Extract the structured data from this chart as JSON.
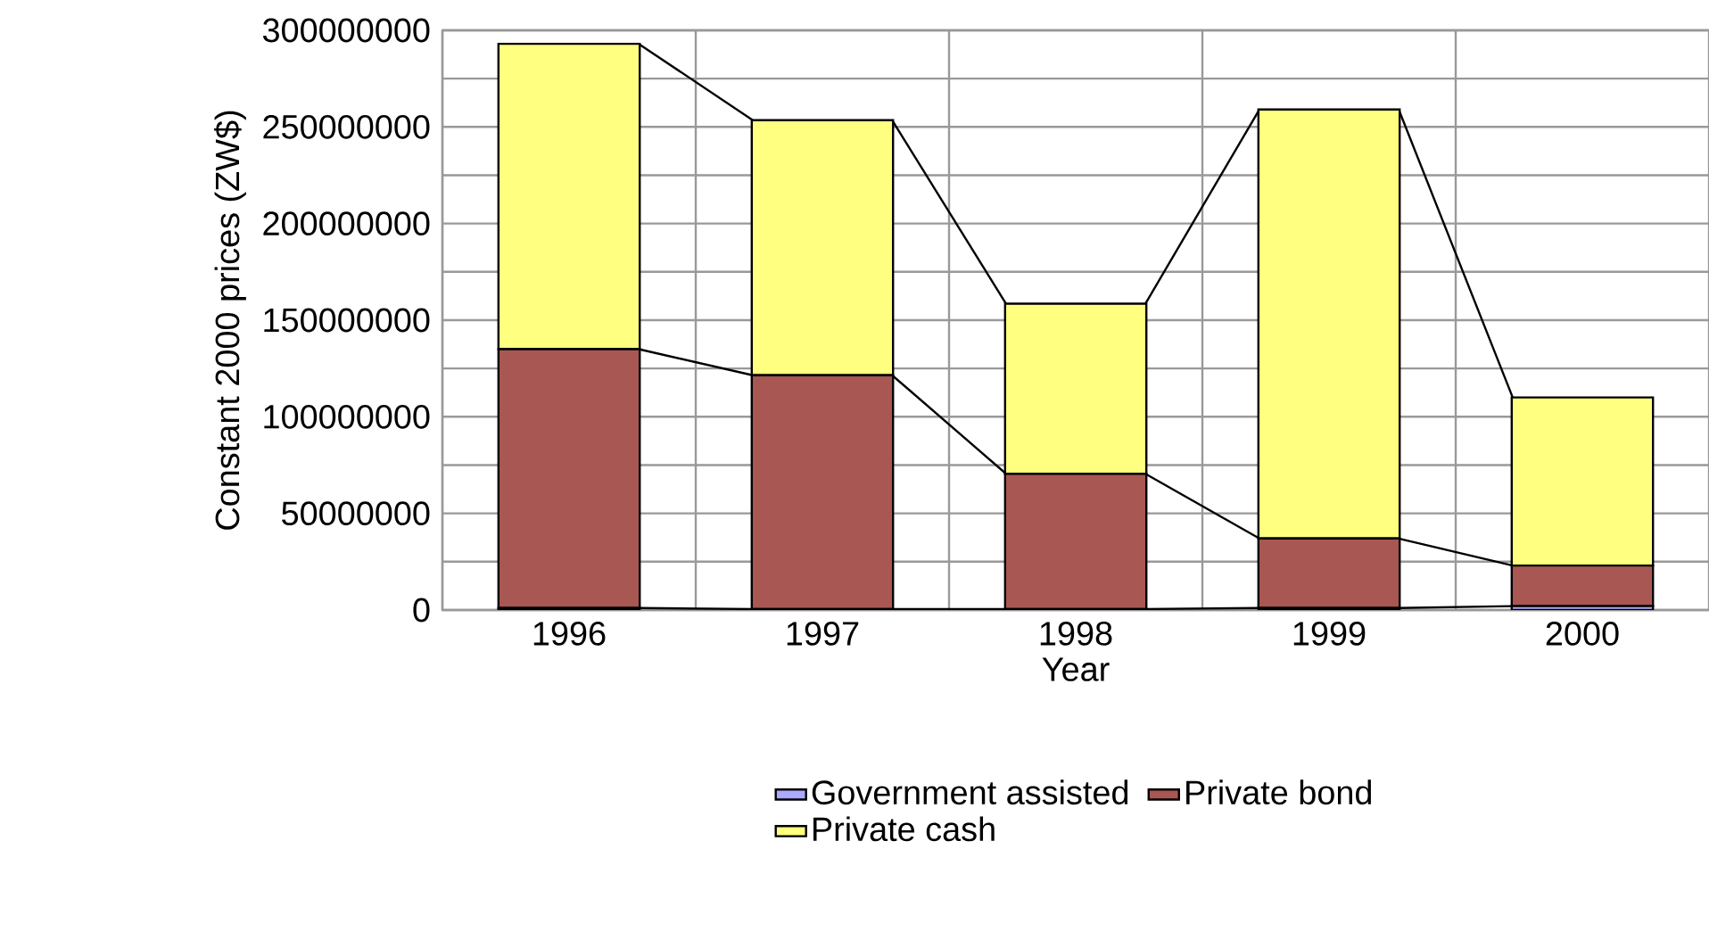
{
  "chart_data": {
    "type": "bar",
    "stacked": true,
    "xlabel": "Year",
    "ylabel": "Constant 2000 prices (ZW$)",
    "categories": [
      "1996",
      "1997",
      "1998",
      "1999",
      "2000"
    ],
    "series": [
      {
        "name": "Government assisted",
        "color": "#aaaaff",
        "values": [
          1000000,
          500000,
          500000,
          1000000,
          2000000
        ]
      },
      {
        "name": "Private bond",
        "color": "#a85753",
        "values": [
          134000000,
          121000000,
          70000000,
          36000000,
          21000000
        ]
      },
      {
        "name": "Private cash",
        "color": "#ffff80",
        "values": [
          158000000,
          132000000,
          88000000,
          222000000,
          87000000
        ]
      }
    ],
    "ylim": [
      0,
      300000000
    ],
    "yticks": [
      0,
      {
        "value": 25000000,
        "label": null
      },
      50000000,
      {
        "value": 75000000,
        "label": null
      },
      100000000,
      {
        "value": 125000000,
        "label": null
      },
      150000000,
      {
        "value": 175000000,
        "label": null
      },
      200000000,
      {
        "value": 225000000,
        "label": null
      },
      250000000,
      {
        "value": 275000000,
        "label": null
      },
      300000000
    ],
    "grid": true,
    "legend": "bottom"
  }
}
